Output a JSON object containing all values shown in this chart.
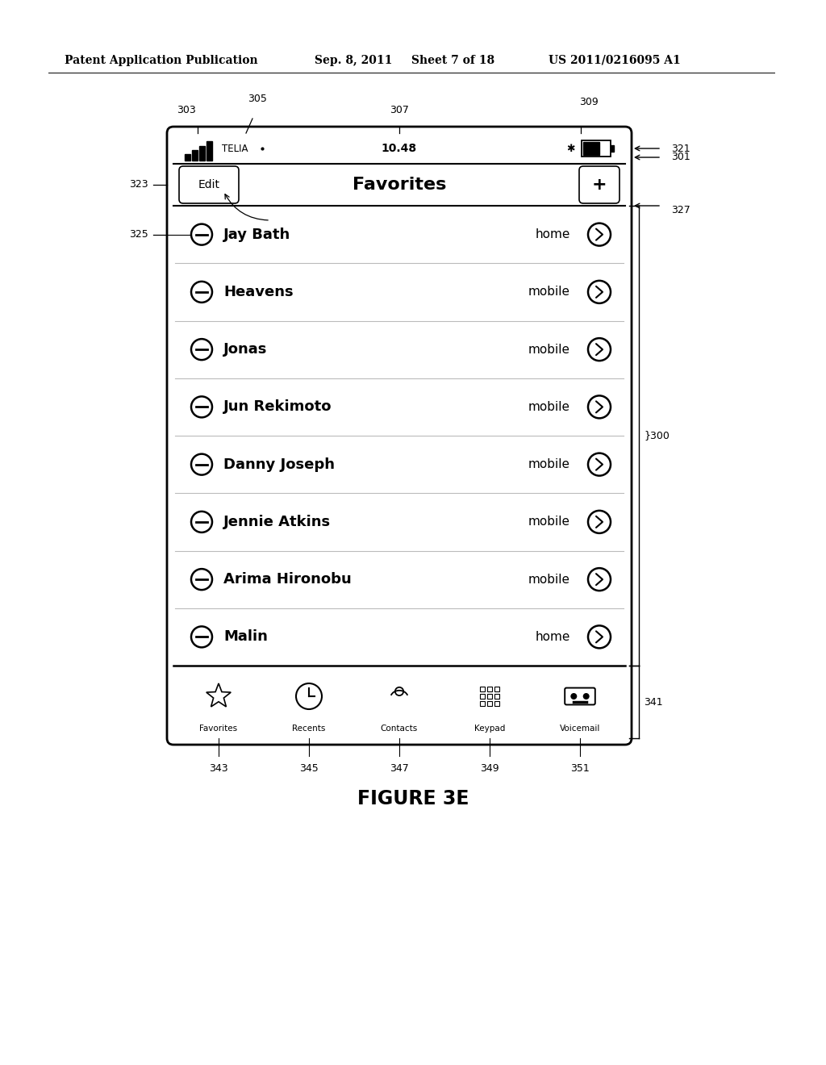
{
  "bg_color": "#ffffff",
  "header_text": "Patent Application Publication",
  "header_date": "Sep. 8, 2011",
  "header_sheet": "Sheet 7 of 18",
  "header_patent": "US 2011/0216095 A1",
  "figure_label": "FIGURE 3E",
  "contacts": [
    {
      "name": "Jay Bath",
      "type": "home"
    },
    {
      "name": "Heavens",
      "type": "mobile"
    },
    {
      "name": "Jonas",
      "type": "mobile"
    },
    {
      "name": "Jun Rekimoto",
      "type": "mobile"
    },
    {
      "name": "Danny Joseph",
      "type": "mobile"
    },
    {
      "name": "Jennie Atkins",
      "type": "mobile"
    },
    {
      "name": "Arima Hironobu",
      "type": "mobile"
    },
    {
      "name": "Malin",
      "type": "home"
    }
  ],
  "tab_items": [
    "Favorites",
    "Recents",
    "Contacts",
    "Keypad",
    "Voicemail"
  ]
}
